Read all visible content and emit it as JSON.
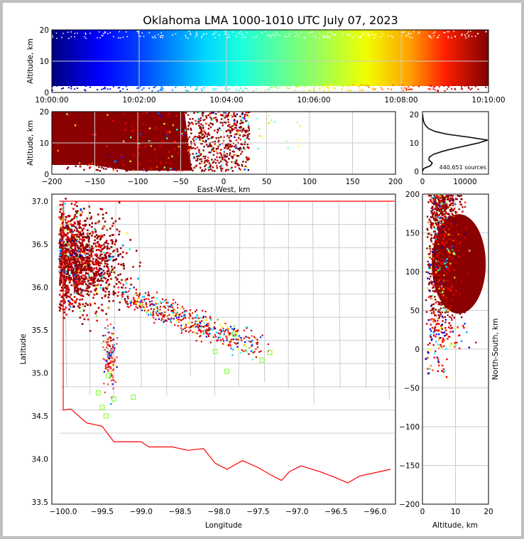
{
  "title": "Oklahoma LMA 1000-1010 UTC July 07, 2023",
  "chart_data": [
    {
      "type": "scatter",
      "name": "time-height",
      "xlabel": "",
      "ylabel": "Altitude, km",
      "xticks": [
        "10:00:00",
        "10:02:00",
        "10:04:00",
        "10:06:00",
        "10:08:00",
        "10:10:00"
      ],
      "xlim_minutes": [
        0,
        10
      ],
      "ylim": [
        0,
        20
      ],
      "yticks": [
        "0",
        "10",
        "20"
      ],
      "colormap": "jet (time)"
    },
    {
      "type": "scatter",
      "name": "east-west-height",
      "xlabel": "East-West, km",
      "ylabel": "Altitude, km",
      "xlim": [
        -200,
        200
      ],
      "ylim": [
        0,
        20
      ],
      "xticks": [
        "−200",
        "−150",
        "−100",
        "−50",
        "0",
        "50",
        "100",
        "150",
        "200"
      ],
      "yticks": [
        "0",
        "10",
        "20"
      ]
    },
    {
      "type": "line",
      "name": "altitude-histogram",
      "xlim": [
        0,
        15500
      ],
      "ylim": [
        -1,
        21
      ],
      "xticks": [
        "0",
        "10000"
      ],
      "yticks": [
        "0",
        "10",
        "20"
      ],
      "annotation": "440,651 sources",
      "altitude_km": [
        0,
        1,
        2,
        3,
        4,
        5,
        6,
        7,
        8,
        9,
        10,
        11,
        12,
        13,
        14,
        15,
        16,
        17,
        18,
        19,
        20
      ],
      "counts": [
        0,
        300,
        1900,
        2300,
        1500,
        1600,
        2600,
        4600,
        7200,
        10200,
        13200,
        15300,
        11000,
        6000,
        3000,
        1500,
        800,
        400,
        200,
        100,
        40
      ]
    },
    {
      "type": "scatter",
      "name": "plan-view",
      "xlabel": "Longitude",
      "ylabel": "Latitude",
      "xlim": [
        -100.05,
        -95.75
      ],
      "ylim": [
        33.48,
        37.07
      ],
      "xticks": [
        "−100.0",
        "−99.5",
        "−99.0",
        "−98.5",
        "−98.0",
        "−97.5",
        "−97.0",
        "−96.5",
        "−96.0"
      ],
      "yticks": [
        "33.5",
        "34.0",
        "34.5",
        "35.0",
        "35.5",
        "36.0",
        "36.5",
        "37.0"
      ]
    },
    {
      "type": "scatter",
      "name": "altitude-north-south",
      "xlabel": "Altitude, km",
      "ylabel": "North-South, km",
      "xlim": [
        0,
        20
      ],
      "ylim": [
        -200,
        200
      ],
      "xticks": [
        "0",
        "10",
        "20"
      ],
      "yticks": [
        "−200",
        "−150",
        "−100",
        "−50",
        "0",
        "50",
        "100",
        "150",
        "200"
      ]
    }
  ]
}
